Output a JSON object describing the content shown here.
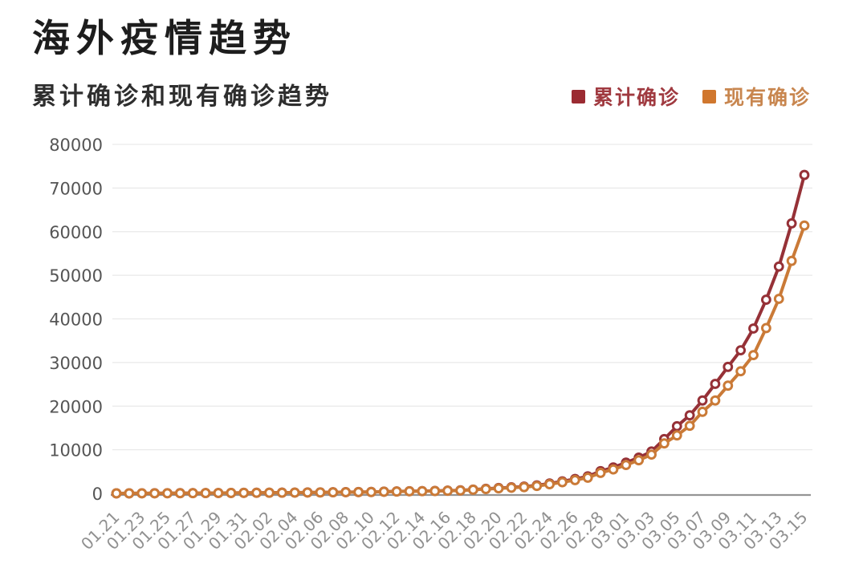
{
  "header": {
    "title": "海外疫情趋势",
    "subtitle": "累计确诊和现有确诊趋势"
  },
  "legend": [
    {
      "label": "累计确诊",
      "color": "#9b2b32",
      "text_color": "#a03a40"
    },
    {
      "label": "现有确诊",
      "color": "#d0772e",
      "text_color": "#c8864f"
    }
  ],
  "chart_data": {
    "type": "line",
    "title": "海外疫情趋势",
    "subtitle": "累计确诊和现有确诊趋势",
    "x": [
      "01.21",
      "01.22",
      "01.23",
      "01.24",
      "01.25",
      "01.26",
      "01.27",
      "01.28",
      "01.29",
      "01.30",
      "01.31",
      "02.01",
      "02.02",
      "02.03",
      "02.04",
      "02.05",
      "02.06",
      "02.07",
      "02.08",
      "02.09",
      "02.10",
      "02.11",
      "02.12",
      "02.13",
      "02.14",
      "02.15",
      "02.16",
      "02.17",
      "02.18",
      "02.19",
      "02.20",
      "02.21",
      "02.22",
      "02.23",
      "02.24",
      "02.25",
      "02.26",
      "02.27",
      "02.28",
      "02.29",
      "03.01",
      "03.02",
      "03.03",
      "03.04",
      "03.05",
      "03.06",
      "03.07",
      "03.08",
      "03.09",
      "03.10",
      "03.11",
      "03.12",
      "03.13",
      "03.14",
      "03.15"
    ],
    "x_label_every": 2,
    "series": [
      {
        "name": "累计确诊",
        "color": "#963137",
        "values": [
          10,
          15,
          20,
          30,
          40,
          55,
          65,
          80,
          90,
          105,
          130,
          145,
          160,
          175,
          190,
          215,
          230,
          260,
          290,
          310,
          330,
          400,
          450,
          510,
          530,
          570,
          640,
          700,
          880,
          1050,
          1230,
          1400,
          1550,
          1840,
          2260,
          2760,
          3300,
          3900,
          5100,
          5950,
          7050,
          8200,
          9600,
          12450,
          15400,
          17900,
          21300,
          25100,
          29000,
          32800,
          37800,
          44400,
          52000,
          61900,
          73000
        ]
      },
      {
        "name": "现有确诊",
        "color": "#ca7a37",
        "values": [
          10,
          14,
          19,
          28,
          38,
          52,
          62,
          76,
          86,
          100,
          124,
          138,
          152,
          166,
          181,
          204,
          219,
          247,
          275,
          295,
          314,
          380,
          428,
          485,
          504,
          542,
          608,
          665,
          836,
          990,
          1150,
          1300,
          1440,
          1700,
          2100,
          2560,
          3050,
          3600,
          4700,
          5500,
          6500,
          7600,
          8900,
          11460,
          13300,
          15500,
          18700,
          21300,
          24700,
          28000,
          31700,
          37900,
          44600,
          53300,
          61400
        ]
      }
    ],
    "ylim": [
      0,
      80000
    ],
    "yticks": [
      0,
      10000,
      20000,
      30000,
      40000,
      50000,
      60000,
      70000,
      80000
    ],
    "grid": true,
    "legend_position": "top-right",
    "marker": "open-circle"
  }
}
